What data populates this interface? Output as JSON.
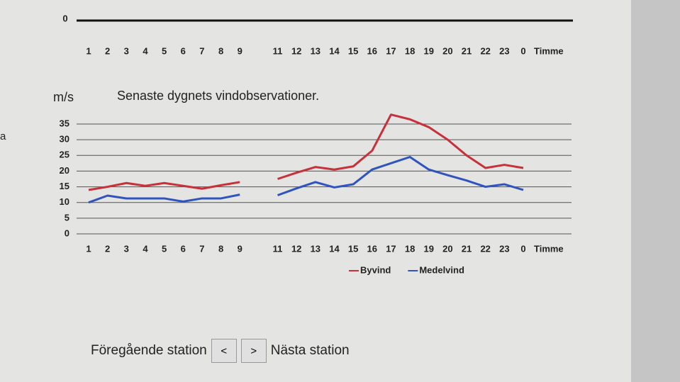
{
  "chart_data": [
    {
      "type": "line",
      "categories": [
        "1",
        "2",
        "3",
        "4",
        "5",
        "6",
        "7",
        "8",
        "9",
        null,
        "11",
        "12",
        "13",
        "14",
        "15",
        "16",
        "17",
        "18",
        "19",
        "20",
        "21",
        "22",
        "23",
        "0"
      ],
      "x_label": "Timme",
      "yticks": [
        0
      ]
    },
    {
      "type": "line",
      "title": "Senaste dygnets vindobservationer.",
      "y_label": "m/s",
      "x_label": "Timme",
      "categories": [
        "1",
        "2",
        "3",
        "4",
        "5",
        "6",
        "7",
        "8",
        "9",
        null,
        "11",
        "12",
        "13",
        "14",
        "15",
        "16",
        "17",
        "18",
        "19",
        "20",
        "21",
        "22",
        "23",
        "0"
      ],
      "series": [
        {
          "name": "Byvind",
          "color": "#c8303a",
          "values": [
            14,
            15,
            16.2,
            15.3,
            16.2,
            15.3,
            14.4,
            15.5,
            16.5,
            null,
            17.5,
            19.5,
            21.3,
            20.5,
            21.5,
            26.5,
            38,
            36.5,
            34,
            30,
            25,
            21,
            22,
            21
          ]
        },
        {
          "name": "Medelvind",
          "color": "#2f54c0",
          "values": [
            10,
            12.2,
            11.3,
            11.3,
            11.3,
            10.3,
            11.3,
            11.3,
            12.5,
            null,
            12.3,
            14.5,
            16.5,
            14.8,
            15.8,
            20.5,
            22.5,
            24.5,
            20.5,
            18.7,
            17,
            15,
            15.8,
            14
          ]
        }
      ],
      "ylim": [
        0,
        40
      ],
      "yticks": [
        0,
        5,
        10,
        15,
        20,
        25,
        30,
        35
      ],
      "grid": true,
      "legend": "bottom"
    }
  ],
  "side_text": "a",
  "navigation": {
    "previous_label": "Föregående station",
    "previous_button": "<",
    "next_button": ">",
    "next_label": "Nästa station"
  }
}
